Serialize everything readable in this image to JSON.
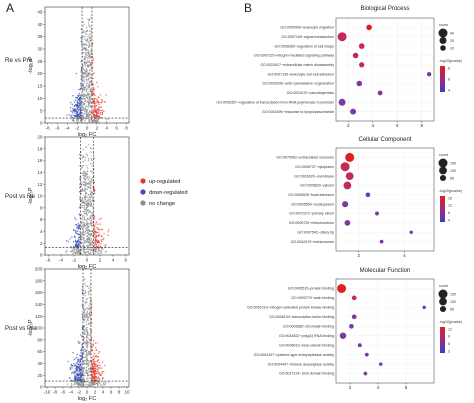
{
  "panels": {
    "a": "A",
    "b": "B"
  },
  "volcano": {
    "xlabel": "log₂ FC",
    "ylabel": "-log₁₀P",
    "rows": [
      {
        "label": "Re vs Pre",
        "xticks": [
          "-8",
          "-6",
          "-4",
          "-2",
          "0",
          "2",
          "4",
          "6",
          "8"
        ],
        "yticks": [
          "0",
          "5",
          "10",
          "15",
          "20",
          "25",
          "30",
          "35",
          "40",
          "45"
        ],
        "xlim": [
          -8.5,
          8.5
        ],
        "ylim": [
          0,
          47
        ],
        "hline": 2,
        "vlines": [
          -1,
          1
        ]
      },
      {
        "label": "Post vs Re",
        "xticks": [
          "-6",
          "-4",
          "-2",
          "0",
          "2",
          "4",
          "6"
        ],
        "yticks": [
          "0",
          "2",
          "4",
          "6",
          "8",
          "10",
          "12",
          "14",
          "16",
          "18",
          "20"
        ],
        "xlim": [
          -6.5,
          6.5
        ],
        "ylim": [
          0,
          20
        ],
        "hline": 1.3,
        "vlines": [
          -1,
          1
        ]
      },
      {
        "label": "Post vs Pre",
        "xticks": [
          "-10",
          "-8",
          "-6",
          "-4",
          "-2",
          "0",
          "2",
          "4",
          "6",
          "8",
          "10"
        ],
        "yticks": [
          "0",
          "20",
          "40",
          "60",
          "80",
          "100",
          "120",
          "140",
          "160",
          "180",
          "200"
        ],
        "xlim": [
          -10.5,
          10.5
        ],
        "ylim": [
          0,
          200
        ],
        "hline": 10,
        "vlines": [
          -1,
          1
        ]
      }
    ],
    "legend": [
      {
        "label": "up-regulated",
        "color": "#e03a2a"
      },
      {
        "label": "down-regulated",
        "color": "#3a4fb0"
      },
      {
        "label": "no change",
        "color": "#8c8c8c"
      }
    ]
  },
  "go": {
    "size_title": "count",
    "color_title": "-log10(pvalue)",
    "sections": [
      {
        "title": "Biological Process",
        "xticks": [
          "2",
          "4",
          "6",
          "8"
        ],
        "xlim": [
          1,
          9
        ],
        "size_legend": [
          "40",
          "20",
          "10"
        ],
        "color_legend": [
          "8",
          "6",
          "4"
        ],
        "terms": [
          {
            "label": "GO:0050900~leukocyte migration",
            "x": 3.7,
            "count": 10,
            "p": 8
          },
          {
            "label": "GO:0007165~signal transduction",
            "x": 1.5,
            "count": 40,
            "p": 6
          },
          {
            "label": "GO:0008360~regulation of cell shape",
            "x": 3.1,
            "count": 10,
            "p": 4
          },
          {
            "label": "GO:0007229~integrin-mediated signaling pathway",
            "x": 2.6,
            "count": 10,
            "p": 4
          },
          {
            "label": "GO:0022617~extracellular matrix disassembly",
            "x": 3.1,
            "count": 8,
            "p": 4
          },
          {
            "label": "GO:0007159~leukocyte cell-cell adhesion",
            "x": 8.6,
            "count": 4,
            "p": 3
          },
          {
            "label": "GO:0030036~actin cytoskeleton organization",
            "x": 2.9,
            "count": 10,
            "p": 3
          },
          {
            "label": "GO:0001570~vasculogenesis",
            "x": 4.6,
            "count": 6,
            "p": 3
          },
          {
            "label": "GO:0006357~regulation of transcription from RNA polymerase II promoter",
            "x": 1.5,
            "count": 20,
            "p": 3
          },
          {
            "label": "GO:0032496~response to lipopolysaccharide",
            "x": 2.4,
            "count": 12,
            "p": 3
          }
        ]
      },
      {
        "title": "Cellular Component",
        "xticks": [
          "2",
          "4"
        ],
        "xlim": [
          1,
          5.3
        ],
        "size_legend": [
          "150",
          "100",
          "50"
        ],
        "color_legend": [
          "16",
          "12",
          "8",
          "4"
        ],
        "terms": [
          {
            "label": "GO:0070062~extracellular exosome",
            "x": 1.6,
            "count": 150,
            "p": 16
          },
          {
            "label": "GO:0005737~cytoplasm",
            "x": 1.4,
            "count": 150,
            "p": 12
          },
          {
            "label": "GO:0016020~membrane",
            "x": 1.6,
            "count": 100,
            "p": 12
          },
          {
            "label": "GO:0005829~cytosol",
            "x": 1.5,
            "count": 100,
            "p": 10
          },
          {
            "label": "GO:0005925~focal adhesion",
            "x": 2.4,
            "count": 20,
            "p": 6
          },
          {
            "label": "GO:0005654~nucleoplasm",
            "x": 1.4,
            "count": 50,
            "p": 5
          },
          {
            "label": "GO:0072372~primary cilium",
            "x": 2.8,
            "count": 10,
            "p": 3
          },
          {
            "label": "GO:0005739~mitochondrion",
            "x": 1.5,
            "count": 40,
            "p": 3
          },
          {
            "label": "GO:0097542~ciliary tip",
            "x": 4.3,
            "count": 5,
            "p": 3
          },
          {
            "label": "GO:0042470~melanosome",
            "x": 3.0,
            "count": 8,
            "p": 3
          }
        ]
      },
      {
        "title": "Molecular Function",
        "xticks": [
          "2",
          "4",
          "6"
        ],
        "xlim": [
          1,
          8
        ],
        "size_legend": [
          "150",
          "100",
          "50"
        ],
        "color_legend": [
          "12",
          "9",
          "6",
          "3"
        ],
        "terms": [
          {
            "label": "GO:0005515~protein binding",
            "x": 1.4,
            "count": 150,
            "p": 12
          },
          {
            "label": "GO:0003779~actin binding",
            "x": 2.3,
            "count": 20,
            "p": 6
          },
          {
            "label": "GO:0051019~mitogen-activated protein kinase binding",
            "x": 7.3,
            "count": 5,
            "p": 5
          },
          {
            "label": "GO:0008134~transcription factor binding",
            "x": 2.3,
            "count": 20,
            "p": 5
          },
          {
            "label": "GO:0003682~chromatin binding",
            "x": 2.1,
            "count": 20,
            "p": 4
          },
          {
            "label": "GO:0044822~poly(A) RNA binding",
            "x": 1.5,
            "count": 60,
            "p": 4
          },
          {
            "label": "GO:0008013~beta-catenin binding",
            "x": 2.7,
            "count": 10,
            "p": 3
          },
          {
            "label": "GO:0004197~cysteine-type endopeptidase activity",
            "x": 3.2,
            "count": 8,
            "p": 3
          },
          {
            "label": "GO:0004407~histone deacetylase activity",
            "x": 4.2,
            "count": 6,
            "p": 3
          },
          {
            "label": "GO:0017124~SH3 domain binding",
            "x": 3.1,
            "count": 8,
            "p": 3
          }
        ]
      }
    ]
  }
}
